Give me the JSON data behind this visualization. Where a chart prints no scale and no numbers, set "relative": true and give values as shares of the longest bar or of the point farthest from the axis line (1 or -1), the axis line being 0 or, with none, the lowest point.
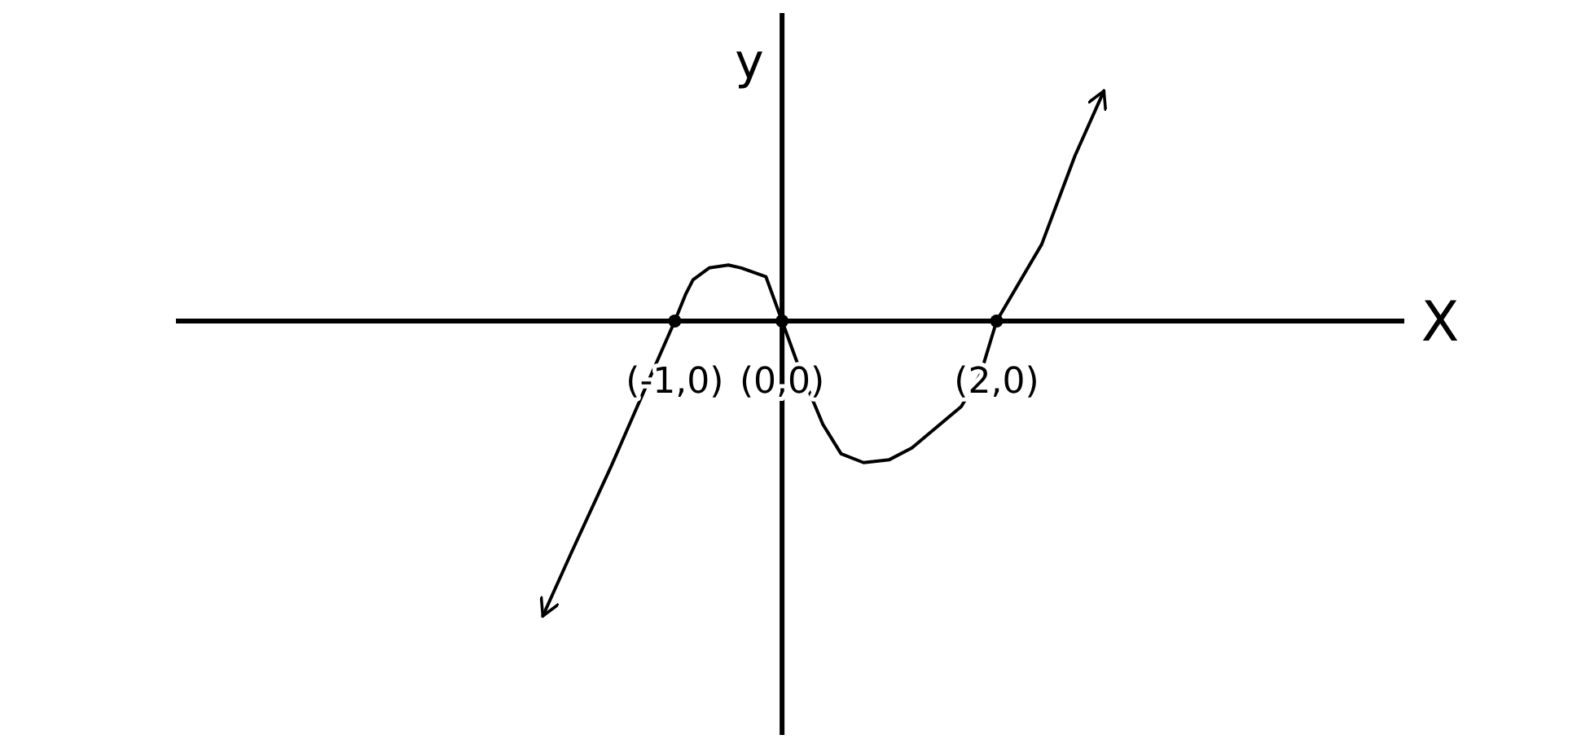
{
  "chart_data": {
    "type": "line",
    "relative": true,
    "xlabel": "X",
    "ylabel": "y",
    "xlim": [
      -5.65,
      5.8
    ],
    "xticks": [
      {
        "value": -1,
        "label": "(-1,0)"
      },
      {
        "value": 0,
        "label": "(0,0)"
      },
      {
        "value": 2,
        "label": "(2,0)"
      }
    ],
    "series": [
      {
        "color": "#000000",
        "x": [
          -2.23,
          -1.97,
          -1.59,
          -1.29,
          -1,
          -0.9,
          -0.83,
          -0.68,
          -0.5,
          -0.38,
          -0.15,
          0,
          0.15,
          0.38,
          0.55,
          0.76,
          1.0,
          1.21,
          1.67,
          1.85,
          2,
          2.42,
          2.73,
          3.0
        ],
        "values": [
          -1,
          -0.79,
          -0.49,
          -0.24,
          0,
          0.09,
          0.14,
          0.18,
          0.19,
          0.18,
          0.15,
          0,
          -0.15,
          -0.35,
          -0.45,
          -0.48,
          -0.47,
          -0.43,
          -0.29,
          -0.18,
          0,
          0.26,
          0.56,
          0.78
        ]
      }
    ]
  }
}
